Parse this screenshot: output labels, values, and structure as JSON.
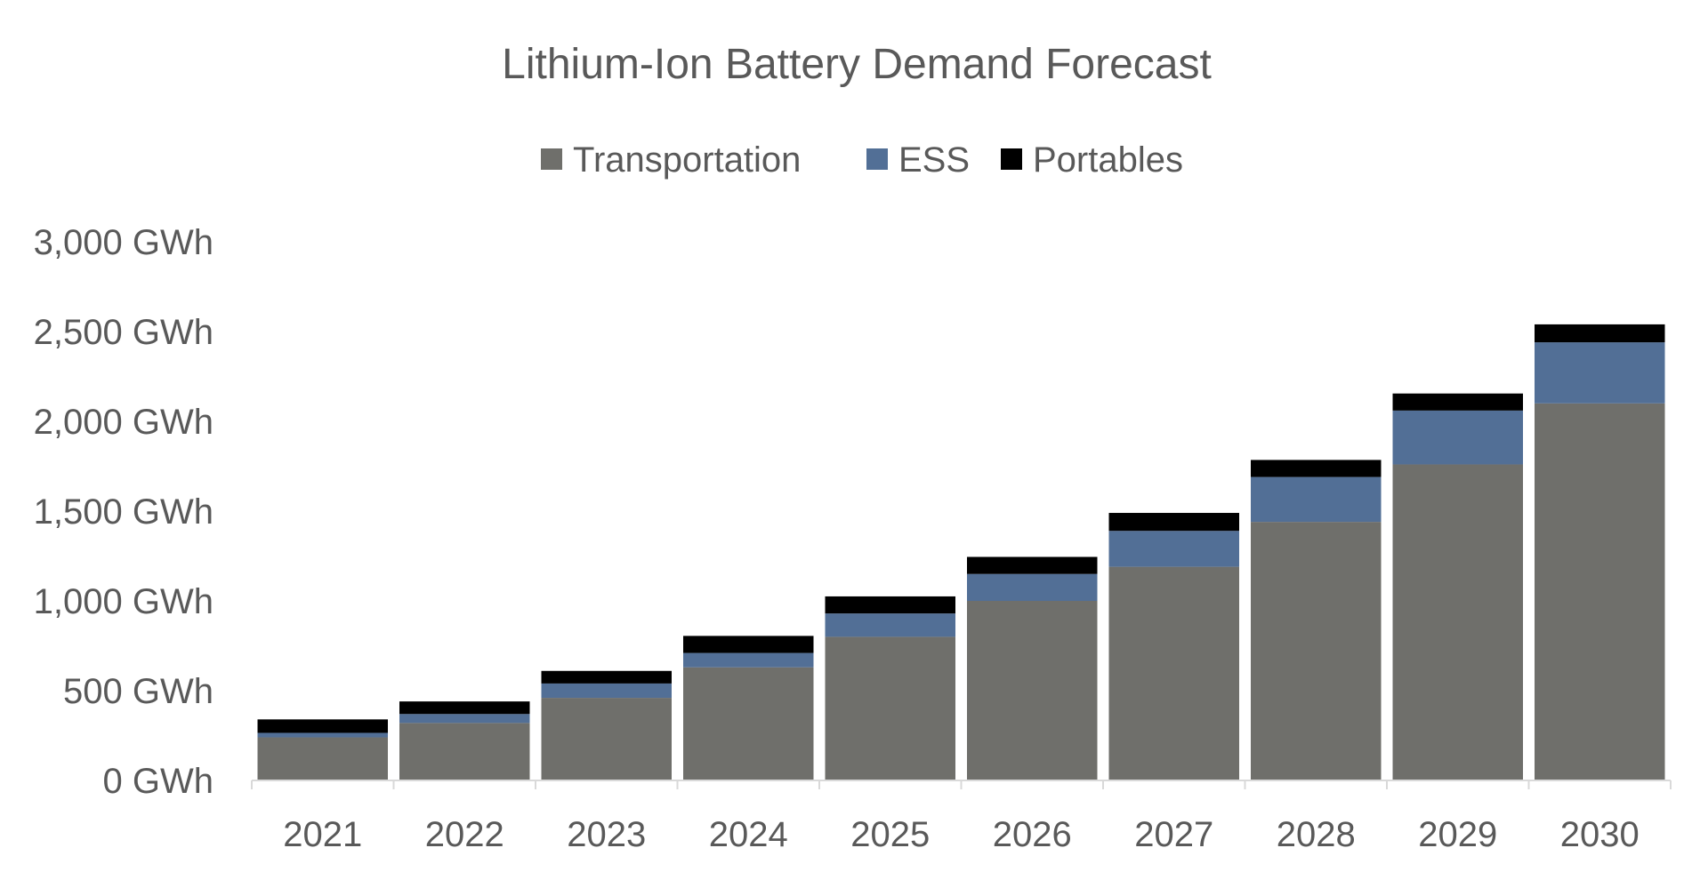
{
  "chart_data": {
    "type": "bar",
    "stacked": true,
    "title": "Lithium-Ion Battery Demand Forecast",
    "xlabel": "",
    "ylabel": "",
    "categories": [
      "2021",
      "2022",
      "2023",
      "2024",
      "2025",
      "2026",
      "2027",
      "2028",
      "2029",
      "2030"
    ],
    "series": [
      {
        "name": "Transportation",
        "color": "#6f6f6b",
        "values": [
          240,
          320,
          460,
          630,
          800,
          1000,
          1190,
          1440,
          1760,
          2100
        ]
      },
      {
        "name": "ESS",
        "color": "#526f96",
        "values": [
          25,
          50,
          80,
          80,
          130,
          150,
          200,
          250,
          300,
          340
        ]
      },
      {
        "name": "Portables",
        "color": "#000000",
        "values": [
          75,
          70,
          70,
          95,
          95,
          95,
          100,
          95,
          95,
          100
        ]
      }
    ],
    "ylim": [
      0,
      3000
    ],
    "yticks": [
      0,
      500,
      1000,
      1500,
      2000,
      2500,
      3000
    ],
    "ytick_labels": [
      "0 GWh",
      "500 GWh",
      "1,000 GWh",
      "1,500 GWh",
      "2,000 GWh",
      "2,500 GWh",
      "3,000 GWh"
    ],
    "legend_position": "top",
    "grid": false
  }
}
